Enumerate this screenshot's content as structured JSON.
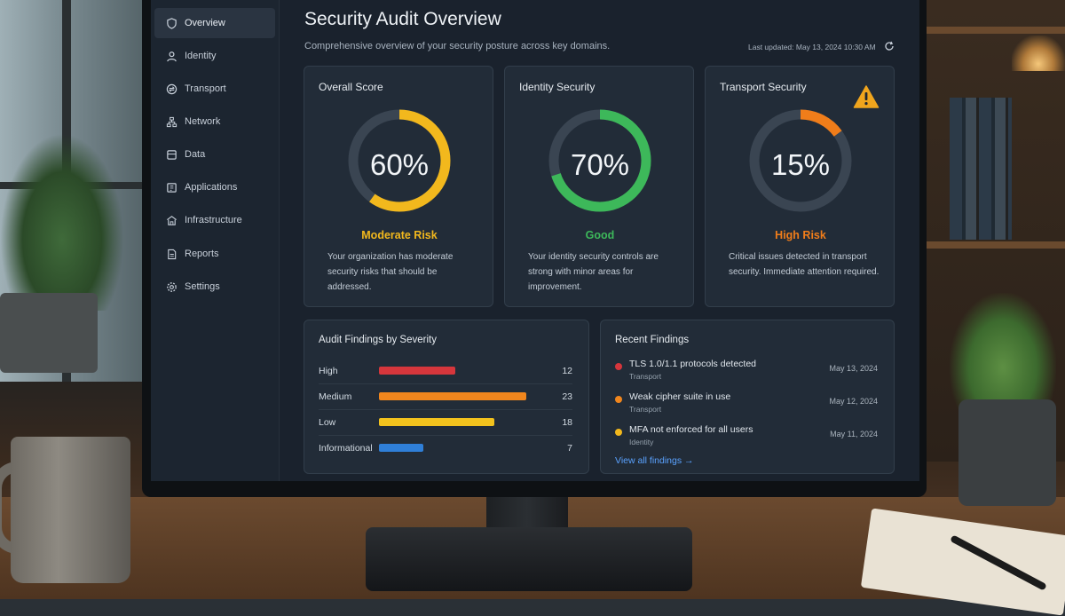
{
  "sidebar": {
    "items": [
      {
        "label": "Overview",
        "icon": "shield-icon"
      },
      {
        "label": "Identity",
        "icon": "user-icon"
      },
      {
        "label": "Transport",
        "icon": "transport-icon"
      },
      {
        "label": "Network",
        "icon": "network-icon"
      },
      {
        "label": "Data",
        "icon": "database-icon"
      },
      {
        "label": "Applications",
        "icon": "applications-icon"
      },
      {
        "label": "Infrastructure",
        "icon": "infrastructure-icon"
      },
      {
        "label": "Reports",
        "icon": "report-icon"
      },
      {
        "label": "Settings",
        "icon": "gear-icon"
      }
    ],
    "active": "Overview"
  },
  "header": {
    "title": "Security Audit Overview",
    "subtitle": "Comprehensive overview of your security posture across key domains.",
    "last_updated": "Last updated: May 13, 2024 10:30 AM"
  },
  "scores": [
    {
      "title": "Overall Score",
      "value": 60,
      "value_label": "60%",
      "status": "Moderate Risk",
      "color": "#f2b81d",
      "description": "Your organization has moderate security risks that should be addressed."
    },
    {
      "title": "Identity Security",
      "value": 70,
      "value_label": "70%",
      "status": "Good",
      "color": "#3db85a",
      "description": "Your identity security controls are strong with minor areas for improvement."
    },
    {
      "title": "Transport Security",
      "value": 15,
      "value_label": "15%",
      "status": "High Risk",
      "color": "#f07d1a",
      "description": "Critical issues detected in transport security. Immediate attention required.",
      "warning_icon": "warning-icon"
    }
  ],
  "findings_by_severity": {
    "title": "Audit Findings by Severity",
    "rows": [
      {
        "label": "High",
        "count": "12",
        "value": 12,
        "color": "#d6363c"
      },
      {
        "label": "Medium",
        "count": "23",
        "value": 23,
        "color": "#f0861d"
      },
      {
        "label": "Low",
        "count": "18",
        "value": 18,
        "color": "#f2c21d"
      },
      {
        "label": "Informational",
        "count": "7",
        "value": 7,
        "color": "#2f7fd8"
      }
    ]
  },
  "recent_findings": {
    "title": "Recent Findings",
    "items": [
      {
        "title": "TLS 1.0/1.1 protocols detected",
        "category": "Transport",
        "date": "May 13, 2024",
        "color": "#d6363c"
      },
      {
        "title": "Weak cipher suite in use",
        "category": "Transport",
        "date": "May 12, 2024",
        "color": "#f0861d"
      },
      {
        "title": "MFA not enforced for all users",
        "category": "Identity",
        "date": "May 11, 2024",
        "color": "#f2b81d"
      }
    ],
    "view_all": "View all findings →"
  }
}
